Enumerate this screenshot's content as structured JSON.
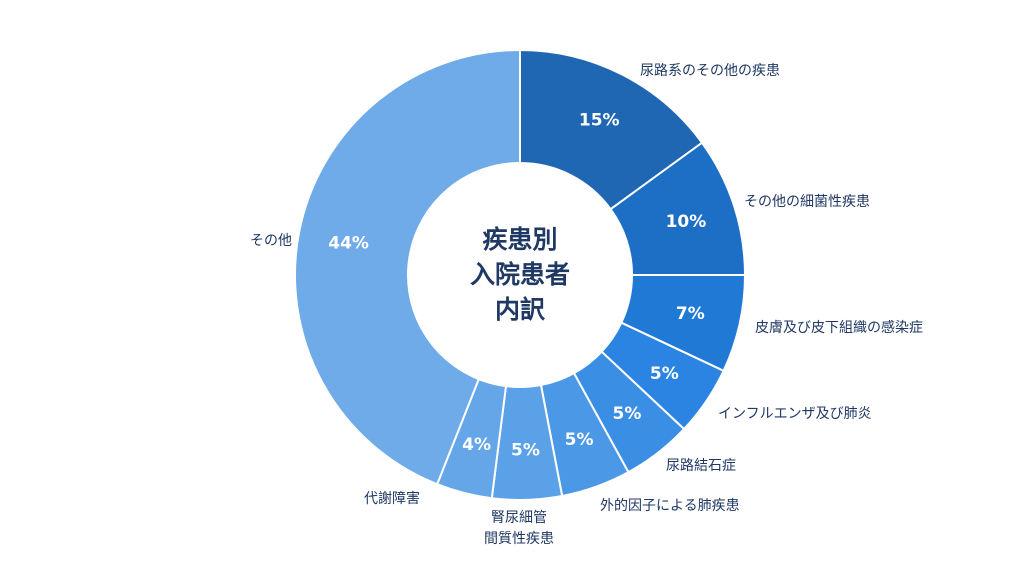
{
  "chart_data": {
    "type": "pie",
    "variant": "donut",
    "center_label": [
      "疾患別",
      "入院患者",
      "内訳"
    ],
    "slices": [
      {
        "label": [
          "尿路系のその他の疾患"
        ],
        "value": 15,
        "value_label": "15%",
        "color": "#1f67b2"
      },
      {
        "label": [
          "その他の細菌性疾患"
        ],
        "value": 10,
        "value_label": "10%",
        "color": "#1d6fc5"
      },
      {
        "label": [
          "皮膚及び皮下組織の感染症"
        ],
        "value": 7,
        "value_label": "7%",
        "color": "#2179d6"
      },
      {
        "label": [
          "インフルエンザ及び肺炎"
        ],
        "value": 5,
        "value_label": "5%",
        "color": "#2b84e2"
      },
      {
        "label": [
          "尿路結石症"
        ],
        "value": 5,
        "value_label": "5%",
        "color": "#3a8ee4"
      },
      {
        "label": [
          "外的因子による肺疾患"
        ],
        "value": 5,
        "value_label": "5%",
        "color": "#4a98e6"
      },
      {
        "label": [
          "腎尿細管",
          "間質性疾患"
        ],
        "value": 5,
        "value_label": "5%",
        "color": "#5aa1e8"
      },
      {
        "label": [
          "代謝障害"
        ],
        "value": 4,
        "value_label": "4%",
        "color": "#64a6e8"
      },
      {
        "label": [
          "その他"
        ],
        "value": 44,
        "value_label": "44%",
        "color": "#6eabe8"
      }
    ]
  }
}
